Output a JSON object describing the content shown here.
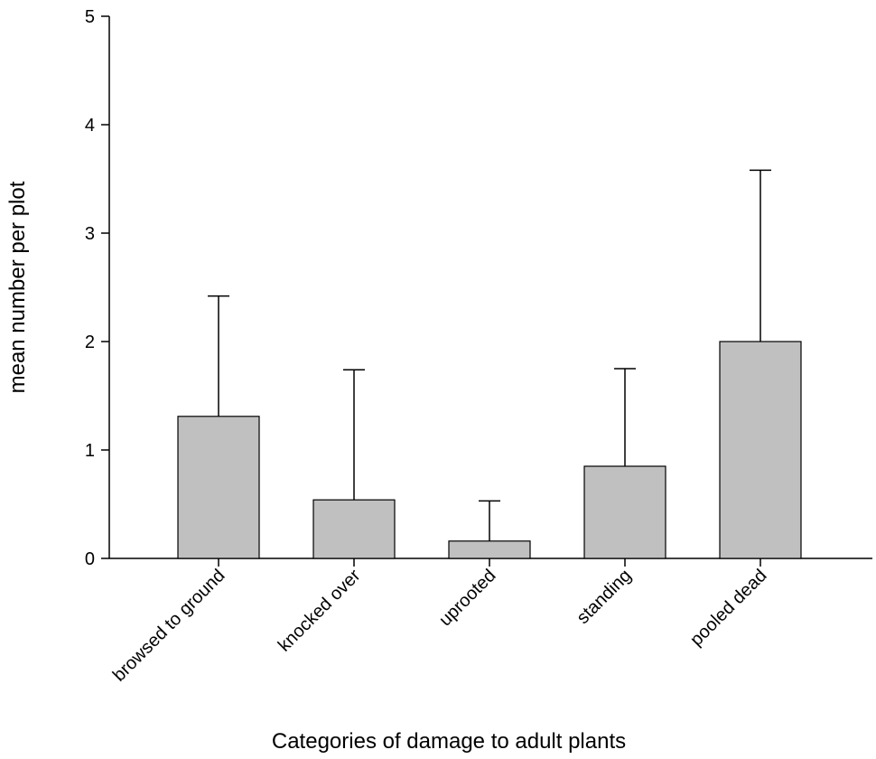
{
  "chart_data": {
    "type": "bar",
    "title": "",
    "xlabel": "Categories of damage to adult plants",
    "ylabel": "mean number per plot",
    "ylim": [
      0,
      5
    ],
    "yticks": [
      0,
      1,
      2,
      3,
      4,
      5
    ],
    "categories": [
      "browsed to ground",
      "knocked over",
      "uprooted",
      "standing",
      "pooled dead"
    ],
    "values": [
      1.31,
      0.54,
      0.16,
      0.85,
      2.0
    ],
    "error_upper": [
      2.42,
      1.74,
      0.53,
      1.75,
      3.58
    ],
    "grid": false,
    "bar_color": "#c0c0c0",
    "edge_color": "#000000"
  }
}
